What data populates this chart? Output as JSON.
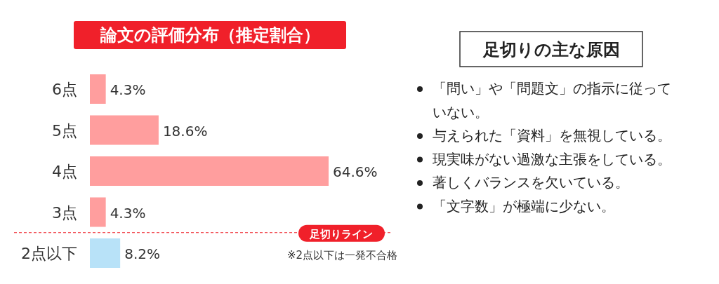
{
  "chart_data": [
    {
      "type": "bar",
      "orientation": "horizontal",
      "title": "論文の評価分布（推定割合）",
      "categories": [
        "6点",
        "5点",
        "4点",
        "3点",
        "2点以下"
      ],
      "values": [
        4.3,
        18.6,
        64.6,
        4.3,
        8.2
      ],
      "colors": [
        "#ff9e9e",
        "#ff9e9e",
        "#ff9e9e",
        "#ff9e9e",
        "#b8e2f8"
      ],
      "value_labels": [
        "4.3%",
        "18.6%",
        "64.6%",
        "4.3%",
        "8.2%"
      ],
      "tick_labels": "y",
      "annotations": [
        "足切りライン",
        "※2点以下は一発不合格"
      ]
    },
    {
      "type": "other",
      "title": "足切りの主な原因",
      "annotations": [
        "「問い」や「問題文」の指示に従っていない。",
        "与えられた「資料」を無視している。",
        "現実味がない過激な主張をしている。",
        "著しくバランスを欠いている。",
        "「文字数」が極端に少ない。"
      ]
    }
  ]
}
